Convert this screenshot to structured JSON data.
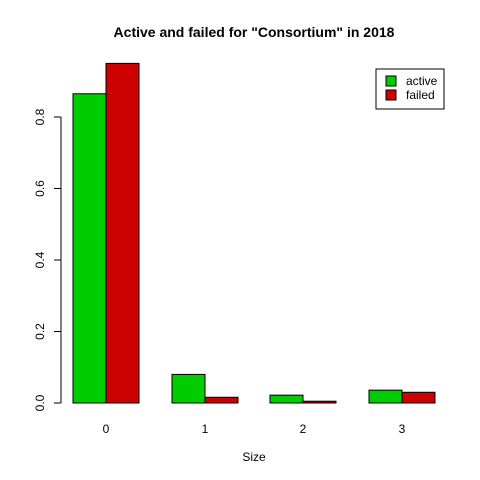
{
  "chart_data": {
    "type": "bar",
    "title": "Active and failed for \"Consortium\" in 2018",
    "xlabel": "Size",
    "ylabel": "",
    "categories": [
      "0",
      "1",
      "2",
      "3"
    ],
    "series": [
      {
        "name": "active",
        "color": "#00CD00",
        "values": [
          0.865,
          0.08,
          0.022,
          0.036
        ]
      },
      {
        "name": "failed",
        "color": "#CD0000",
        "values": [
          0.95,
          0.016,
          0.005,
          0.03
        ]
      }
    ],
    "ylim": [
      0,
      0.96
    ],
    "yticks": [
      "0.0",
      "0.2",
      "0.4",
      "0.6",
      "0.8"
    ],
    "ytick_values": [
      0,
      0.2,
      0.4,
      0.6,
      0.8
    ],
    "grid": false,
    "legend_position": "top-right",
    "bar_outline_color": "#000000"
  }
}
